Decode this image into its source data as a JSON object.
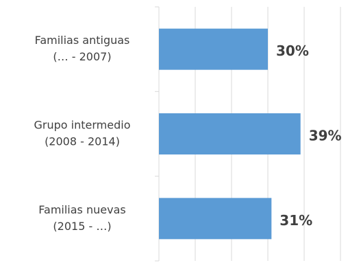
{
  "chart_data": {
    "type": "hbar",
    "categories": [
      [
        "Familias antiguas",
        "(… - 2007)"
      ],
      [
        "Grupo intermedio",
        "(2008 - 2014)"
      ],
      [
        "Familias nuevas",
        "(2015 - …)"
      ]
    ],
    "values": [
      30,
      39,
      31
    ],
    "value_labels": [
      "30%",
      "39%",
      "31%"
    ],
    "color": "#5b9bd5",
    "xlim": [
      0,
      50
    ],
    "xticks": [
      0,
      10,
      20,
      30,
      40,
      50
    ],
    "grid": true
  }
}
